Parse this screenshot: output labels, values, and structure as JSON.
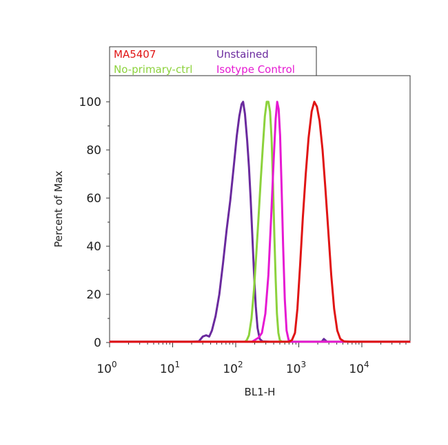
{
  "chart_data": {
    "type": "line",
    "title": "",
    "xlabel": "BL1-H",
    "ylabel": "Percent of Max",
    "x_scale": "log",
    "xlim": [
      1,
      60000
    ],
    "ylim": [
      0,
      110
    ],
    "x_ticks": [
      {
        "value": 1,
        "base": "10",
        "exp": "0"
      },
      {
        "value": 10,
        "base": "10",
        "exp": "1"
      },
      {
        "value": 100,
        "base": "10",
        "exp": "2"
      },
      {
        "value": 1000,
        "base": "10",
        "exp": "3"
      },
      {
        "value": 10000,
        "base": "10",
        "exp": "4"
      }
    ],
    "y_ticks": [
      {
        "value": 0,
        "label": "0"
      },
      {
        "value": 20,
        "label": "20"
      },
      {
        "value": 40,
        "label": "40"
      },
      {
        "value": 60,
        "label": "60"
      },
      {
        "value": 80,
        "label": "80"
      },
      {
        "value": 100,
        "label": "100"
      }
    ],
    "grid": false,
    "legend_position": "top",
    "series": [
      {
        "name": "Unstained",
        "color": "#6a2a9e",
        "points": [
          [
            1,
            0.3
          ],
          [
            20,
            0.3
          ],
          [
            26,
            0.5
          ],
          [
            30,
            2.5
          ],
          [
            34,
            3
          ],
          [
            38,
            2.5
          ],
          [
            42,
            5
          ],
          [
            48,
            11
          ],
          [
            55,
            20
          ],
          [
            63,
            33
          ],
          [
            72,
            47
          ],
          [
            82,
            59
          ],
          [
            93,
            73
          ],
          [
            104,
            86
          ],
          [
            114,
            94
          ],
          [
            124,
            99
          ],
          [
            131,
            100
          ],
          [
            140,
            95
          ],
          [
            152,
            84
          ],
          [
            162,
            73
          ],
          [
            172,
            60
          ],
          [
            183,
            45
          ],
          [
            195,
            29
          ],
          [
            208,
            15
          ],
          [
            222,
            6
          ],
          [
            240,
            1.5
          ],
          [
            265,
            0.5
          ],
          [
            350,
            0.3
          ],
          [
            2300,
            0.3
          ],
          [
            2500,
            1.5
          ],
          [
            2800,
            0.3
          ],
          [
            60000,
            0.3
          ]
        ]
      },
      {
        "name": "No-primary-ctrl",
        "color": "#8cd23c",
        "points": [
          [
            1,
            0.3
          ],
          [
            140,
            0.3
          ],
          [
            150,
            1
          ],
          [
            162,
            3
          ],
          [
            178,
            10
          ],
          [
            195,
            22
          ],
          [
            212,
            37
          ],
          [
            230,
            52
          ],
          [
            250,
            68
          ],
          [
            270,
            82
          ],
          [
            290,
            94
          ],
          [
            310,
            100
          ],
          [
            330,
            100
          ],
          [
            350,
            96
          ],
          [
            370,
            85
          ],
          [
            390,
            66
          ],
          [
            410,
            44
          ],
          [
            430,
            26
          ],
          [
            450,
            12
          ],
          [
            475,
            4
          ],
          [
            500,
            1
          ],
          [
            540,
            0.3
          ],
          [
            60000,
            0.3
          ]
        ]
      },
      {
        "name": "Isotype Control",
        "color": "#e619d2",
        "points": [
          [
            1,
            0.3
          ],
          [
            180,
            0.3
          ],
          [
            200,
            1
          ],
          [
            230,
            2
          ],
          [
            260,
            4
          ],
          [
            295,
            12
          ],
          [
            330,
            28
          ],
          [
            365,
            52
          ],
          [
            400,
            76
          ],
          [
            430,
            93
          ],
          [
            455,
            100
          ],
          [
            480,
            97
          ],
          [
            505,
            86
          ],
          [
            535,
            64
          ],
          [
            565,
            40
          ],
          [
            600,
            18
          ],
          [
            640,
            5
          ],
          [
            690,
            1
          ],
          [
            750,
            0.3
          ],
          [
            60000,
            0.3
          ]
        ]
      },
      {
        "name": "MA5407",
        "color": "#e01414",
        "points": [
          [
            1,
            0.3
          ],
          [
            700,
            0.3
          ],
          [
            780,
            1
          ],
          [
            870,
            4
          ],
          [
            950,
            14
          ],
          [
            1050,
            32
          ],
          [
            1160,
            52
          ],
          [
            1290,
            70
          ],
          [
            1430,
            85
          ],
          [
            1600,
            96
          ],
          [
            1760,
            100
          ],
          [
            1940,
            98
          ],
          [
            2140,
            92
          ],
          [
            2380,
            80
          ],
          [
            2640,
            64
          ],
          [
            2940,
            46
          ],
          [
            3270,
            28
          ],
          [
            3640,
            14
          ],
          [
            4070,
            5
          ],
          [
            4550,
            1.5
          ],
          [
            5200,
            0.5
          ],
          [
            6500,
            0.3
          ],
          [
            60000,
            0.3
          ]
        ]
      }
    ]
  }
}
